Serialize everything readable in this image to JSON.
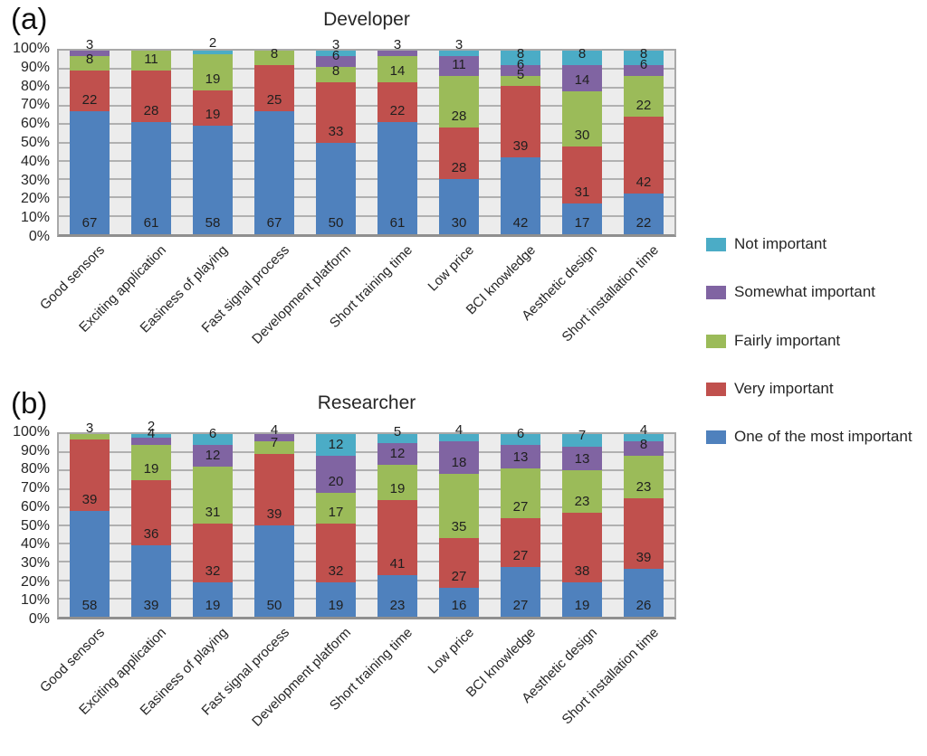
{
  "y_ticks": [
    "100%",
    "90%",
    "80%",
    "70%",
    "60%",
    "50%",
    "40%",
    "30%",
    "20%",
    "10%",
    "0%"
  ],
  "legend": [
    {
      "label": "Not important",
      "color": "#4BACC6"
    },
    {
      "label": "Somewhat important",
      "color": "#8064A2"
    },
    {
      "label": "Fairly important",
      "color": "#9BBB59"
    },
    {
      "label": "Very important",
      "color": "#C0504D"
    },
    {
      "label": "One of the most important",
      "color": "#4F81BD"
    }
  ],
  "colors": {
    "blue": "#4F81BD",
    "red": "#C0504D",
    "green": "#9BBB59",
    "purple": "#8064A2",
    "cyan": "#4BACC6",
    "plot_background": "#ECECEC",
    "gridline": "#B0B0B0",
    "plot_border": "#A9A9A9"
  },
  "chart_data": [
    {
      "type": "bar",
      "stacked": true,
      "units": "percent_of_total",
      "panel_label": "(a)",
      "title": "Developer",
      "ylim": [
        0,
        100
      ],
      "grid": true,
      "legend_position": "right",
      "categories": [
        "Good sensors",
        "Exciting application",
        "Easiness of playing",
        "Fast signal process",
        "Development platform",
        "Short training time",
        "Low price",
        "BCI knowledge",
        "Aesthetic design",
        "Short installation time"
      ],
      "series": [
        {
          "name": "One of the most important",
          "color": "#4F81BD",
          "values": [
            67,
            61,
            58,
            67,
            50,
            61,
            30,
            42,
            17,
            22
          ]
        },
        {
          "name": "Very important",
          "color": "#C0504D",
          "values": [
            22,
            28,
            19,
            25,
            33,
            22,
            28,
            39,
            31,
            42
          ]
        },
        {
          "name": "Fairly important",
          "color": "#9BBB59",
          "values": [
            8,
            11,
            19,
            8,
            8,
            14,
            28,
            5,
            30,
            22
          ]
        },
        {
          "name": "Somewhat important",
          "color": "#8064A2",
          "values": [
            3,
            0,
            0,
            0,
            6,
            3,
            11,
            6,
            14,
            6
          ]
        },
        {
          "name": "Not important",
          "color": "#4BACC6",
          "values": [
            0,
            0,
            2,
            0,
            3,
            0,
            3,
            8,
            8,
            8
          ]
        }
      ]
    },
    {
      "type": "bar",
      "stacked": true,
      "units": "percent_of_total",
      "panel_label": "(b)",
      "title": "Researcher",
      "ylim": [
        0,
        100
      ],
      "grid": true,
      "legend_position": "right",
      "categories": [
        "Good sensors",
        "Exciting application",
        "Easiness of playing",
        "Fast signal process",
        "Development platform",
        "Short training time",
        "Low price",
        "BCI knowledge",
        "Aesthetic design",
        "Short installation time"
      ],
      "series": [
        {
          "name": "One of the most important",
          "color": "#4F81BD",
          "values": [
            58,
            39,
            19,
            50,
            19,
            23,
            16,
            27,
            19,
            26
          ]
        },
        {
          "name": "Very important",
          "color": "#C0504D",
          "values": [
            39,
            36,
            32,
            39,
            32,
            41,
            27,
            27,
            38,
            39
          ]
        },
        {
          "name": "Fairly important",
          "color": "#9BBB59",
          "values": [
            3,
            19,
            31,
            7,
            17,
            19,
            35,
            27,
            23,
            23
          ]
        },
        {
          "name": "Somewhat important",
          "color": "#8064A2",
          "values": [
            0,
            4,
            12,
            4,
            20,
            12,
            18,
            13,
            13,
            8
          ]
        },
        {
          "name": "Not important",
          "color": "#4BACC6",
          "values": [
            0,
            2,
            6,
            0,
            12,
            5,
            4,
            6,
            7,
            4
          ]
        }
      ]
    }
  ]
}
